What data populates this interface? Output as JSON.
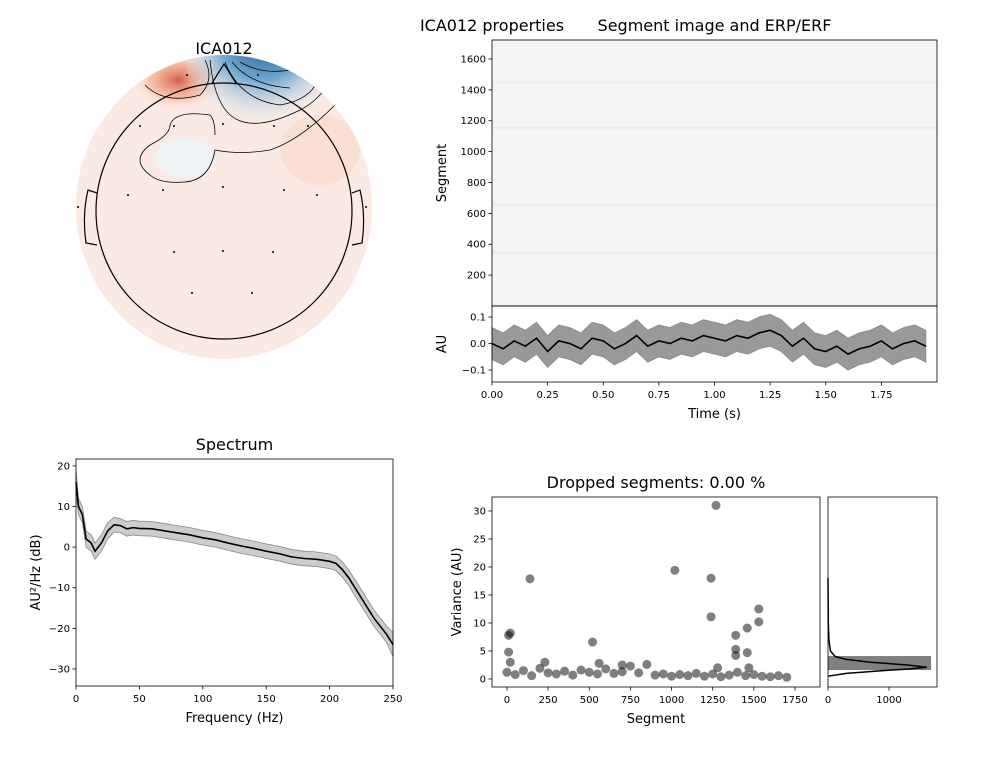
{
  "figure": {
    "title": "ICA012 properties"
  },
  "chart_data": [
    {
      "type": "topomap",
      "title": "ICA012"
    },
    {
      "type": "image",
      "title": "Segment image and ERP/ERF",
      "ylabel": "Segment",
      "ylim": [
        0,
        1723
      ],
      "yticks": [
        200,
        400,
        600,
        800,
        1000,
        1200,
        1400,
        1600
      ]
    },
    {
      "type": "line",
      "xlabel": "Time (s)",
      "ylabel": "AU",
      "color": "#000000",
      "band_color": "#999999",
      "xlim": [
        0,
        2.0
      ],
      "ylim": [
        -0.145,
        0.1415
      ],
      "xticks": [
        {
          "value": 0,
          "label": "0.00"
        },
        {
          "value": 0.25,
          "label": "0.25"
        },
        {
          "value": 0.5,
          "label": "0.50"
        },
        {
          "value": 0.75,
          "label": "0.75"
        },
        {
          "value": 1,
          "label": "1.00"
        },
        {
          "value": 1.25,
          "label": "1.25"
        },
        {
          "value": 1.5,
          "label": "1.50"
        },
        {
          "value": 1.75,
          "label": "1.75"
        }
      ],
      "yticks": [
        {
          "value": -0.1,
          "label": "−0.1"
        },
        {
          "value": 0,
          "label": "0.0"
        },
        0.1
      ],
      "x": [
        0,
        0.05,
        0.1,
        0.15,
        0.2,
        0.25,
        0.3,
        0.35,
        0.4,
        0.45,
        0.5,
        0.55,
        0.6,
        0.65,
        0.7,
        0.75,
        0.8,
        0.85,
        0.9,
        0.95,
        1,
        1.05,
        1.1,
        1.15,
        1.2,
        1.25,
        1.3,
        1.35,
        1.4,
        1.45,
        1.5,
        1.55,
        1.6,
        1.65,
        1.7,
        1.75,
        1.8,
        1.85,
        1.9,
        1.95
      ],
      "values": [
        0,
        -0.02,
        0.01,
        -0.01,
        0.02,
        -0.03,
        0.01,
        0,
        -0.02,
        0.02,
        0.01,
        -0.02,
        0,
        0.03,
        -0.01,
        0.01,
        0,
        0.02,
        0.01,
        0.03,
        0.02,
        0.01,
        0.03,
        0.02,
        0.04,
        0.05,
        0.03,
        -0.01,
        0.02,
        -0.02,
        -0.03,
        -0.01,
        -0.04,
        -0.02,
        -0.01,
        0.01,
        -0.02,
        0,
        0.01,
        -0.01
      ],
      "upper": [
        0.06,
        0.04,
        0.07,
        0.05,
        0.08,
        0.03,
        0.07,
        0.06,
        0.04,
        0.08,
        0.07,
        0.04,
        0.06,
        0.09,
        0.05,
        0.07,
        0.06,
        0.08,
        0.07,
        0.09,
        0.08,
        0.07,
        0.09,
        0.08,
        0.1,
        0.11,
        0.09,
        0.05,
        0.08,
        0.04,
        0.03,
        0.05,
        0.02,
        0.04,
        0.05,
        0.07,
        0.04,
        0.06,
        0.07,
        0.05
      ],
      "lower": [
        -0.06,
        -0.08,
        -0.05,
        -0.07,
        -0.04,
        -0.09,
        -0.05,
        -0.06,
        -0.08,
        -0.04,
        -0.05,
        -0.08,
        -0.06,
        -0.03,
        -0.07,
        -0.05,
        -0.06,
        -0.04,
        -0.05,
        -0.03,
        -0.04,
        -0.05,
        -0.03,
        -0.04,
        -0.02,
        -0.01,
        -0.03,
        -0.07,
        -0.04,
        -0.08,
        -0.09,
        -0.07,
        -0.1,
        -0.08,
        -0.07,
        -0.05,
        -0.08,
        -0.06,
        -0.05,
        -0.07
      ]
    },
    {
      "type": "line",
      "title": "Spectrum",
      "xlabel": "Frequency (Hz)",
      "ylabel": "AU²/Hz (dB)",
      "color": "#000000",
      "band_color": "#cccccc",
      "xlim": [
        0,
        250
      ],
      "ylim": [
        -34.2,
        21.7
      ],
      "xticks": [
        0,
        50,
        100,
        150,
        200,
        250
      ],
      "yticks": [
        {
          "value": -30,
          "label": "−30"
        },
        {
          "value": -20,
          "label": "−20"
        },
        {
          "value": -10,
          "label": "−10"
        },
        0,
        10,
        20
      ],
      "x": [
        0,
        2,
        5,
        8,
        12,
        15,
        20,
        25,
        30,
        35,
        40,
        45,
        50,
        60,
        70,
        80,
        90,
        100,
        110,
        120,
        130,
        140,
        150,
        160,
        170,
        180,
        190,
        200,
        205,
        210,
        215,
        220,
        225,
        230,
        235,
        240,
        245,
        250
      ],
      "values": [
        16,
        10,
        8,
        2,
        1,
        -1,
        1,
        4,
        5.5,
        5.3,
        4.5,
        4.8,
        4.6,
        4.5,
        4,
        3.5,
        3,
        2.3,
        1.8,
        1,
        0.3,
        -0.3,
        -1,
        -1.6,
        -2.4,
        -2.8,
        -3,
        -3.5,
        -4,
        -5.5,
        -7.5,
        -10,
        -12.5,
        -15,
        -17.5,
        -19.5,
        -21.5,
        -24
      ],
      "upper": [
        19,
        12,
        10,
        4,
        3,
        1,
        3,
        6,
        7.3,
        7,
        6.3,
        6.6,
        6.4,
        6.3,
        5.8,
        5.3,
        4.8,
        4.1,
        3.6,
        2.8,
        2.1,
        1.5,
        0.8,
        0.2,
        -0.6,
        -1,
        -1.2,
        -1.7,
        -2.2,
        -3.6,
        -5.6,
        -8,
        -10.5,
        -13,
        -15.5,
        -17.5,
        -19.5,
        -21
      ],
      "lower": [
        13,
        8,
        6,
        0,
        -1,
        -3,
        -1,
        2,
        3.7,
        3.6,
        2.7,
        3,
        2.8,
        2.7,
        2.2,
        1.7,
        1.2,
        0.5,
        0,
        -0.8,
        -1.5,
        -2.1,
        -2.8,
        -3.4,
        -4.2,
        -4.6,
        -4.8,
        -5.3,
        -5.8,
        -7.4,
        -9.4,
        -12,
        -14.5,
        -17,
        -19.5,
        -21.5,
        -23.5,
        -27
      ]
    },
    {
      "type": "scatter",
      "title": "Dropped segments: 0.00 %",
      "xlabel": "Segment",
      "ylabel": "Variance (AU)",
      "color": "#000000",
      "alpha": 0.5,
      "xlim": [
        -91,
        1902
      ],
      "ylim": [
        -1.43,
        32.5
      ],
      "xticks": [
        0,
        250,
        500,
        750,
        1000,
        1250,
        1500,
        1750
      ],
      "yticks": [
        0,
        5,
        10,
        15,
        20,
        25,
        30
      ],
      "x": [
        0,
        50,
        100,
        150,
        200,
        250,
        300,
        350,
        400,
        450,
        500,
        550,
        600,
        650,
        700,
        750,
        800,
        850,
        900,
        950,
        1000,
        1050,
        1100,
        1150,
        1200,
        1250,
        1300,
        1350,
        1400,
        1450,
        1500,
        1550,
        1600,
        1650,
        1700,
        10,
        20,
        10,
        20,
        140,
        520,
        1020,
        1240,
        1240,
        1270,
        1390,
        1390,
        1390,
        1460,
        1460,
        1530,
        1530,
        230,
        560,
        700,
        1280,
        1470
      ],
      "values": [
        1.2,
        0.8,
        1.5,
        0.6,
        1.9,
        1.1,
        0.9,
        1.4,
        0.7,
        1.6,
        1.2,
        0.9,
        1.8,
        1.0,
        1.3,
        2.3,
        1.1,
        2.6,
        0.7,
        0.9,
        0.5,
        0.8,
        0.6,
        1.0,
        0.5,
        0.9,
        0.4,
        0.7,
        1.2,
        0.6,
        0.8,
        0.5,
        0.4,
        0.6,
        0.3,
        7.8,
        8.2,
        4.8,
        3,
        17.9,
        6.6,
        19.4,
        18,
        11.1,
        31,
        7.8,
        5.3,
        4.2,
        9.1,
        4.7,
        12.5,
        10.2,
        3,
        2.8,
        2.5,
        2,
        2
      ]
    },
    {
      "type": "histogram",
      "orientation": "horizontal",
      "color": "#808080",
      "line_color": "#000000",
      "xlim": [
        0,
        1787
      ],
      "ylim": [
        -1.43,
        32.5
      ],
      "xticks": [
        0,
        1000
      ],
      "bins": [
        1.6,
        4.1
      ],
      "counts": [
        1690
      ],
      "kde": {
        "x": [
          0,
          300,
          900,
          1350,
          1620,
          1300,
          700,
          300,
          120,
          40,
          15,
          5,
          0
        ],
        "y": [
          0.5,
          1.0,
          1.5,
          1.8,
          2.1,
          2.5,
          3.0,
          3.5,
          4.0,
          5.0,
          7,
          10,
          18
        ]
      }
    }
  ]
}
